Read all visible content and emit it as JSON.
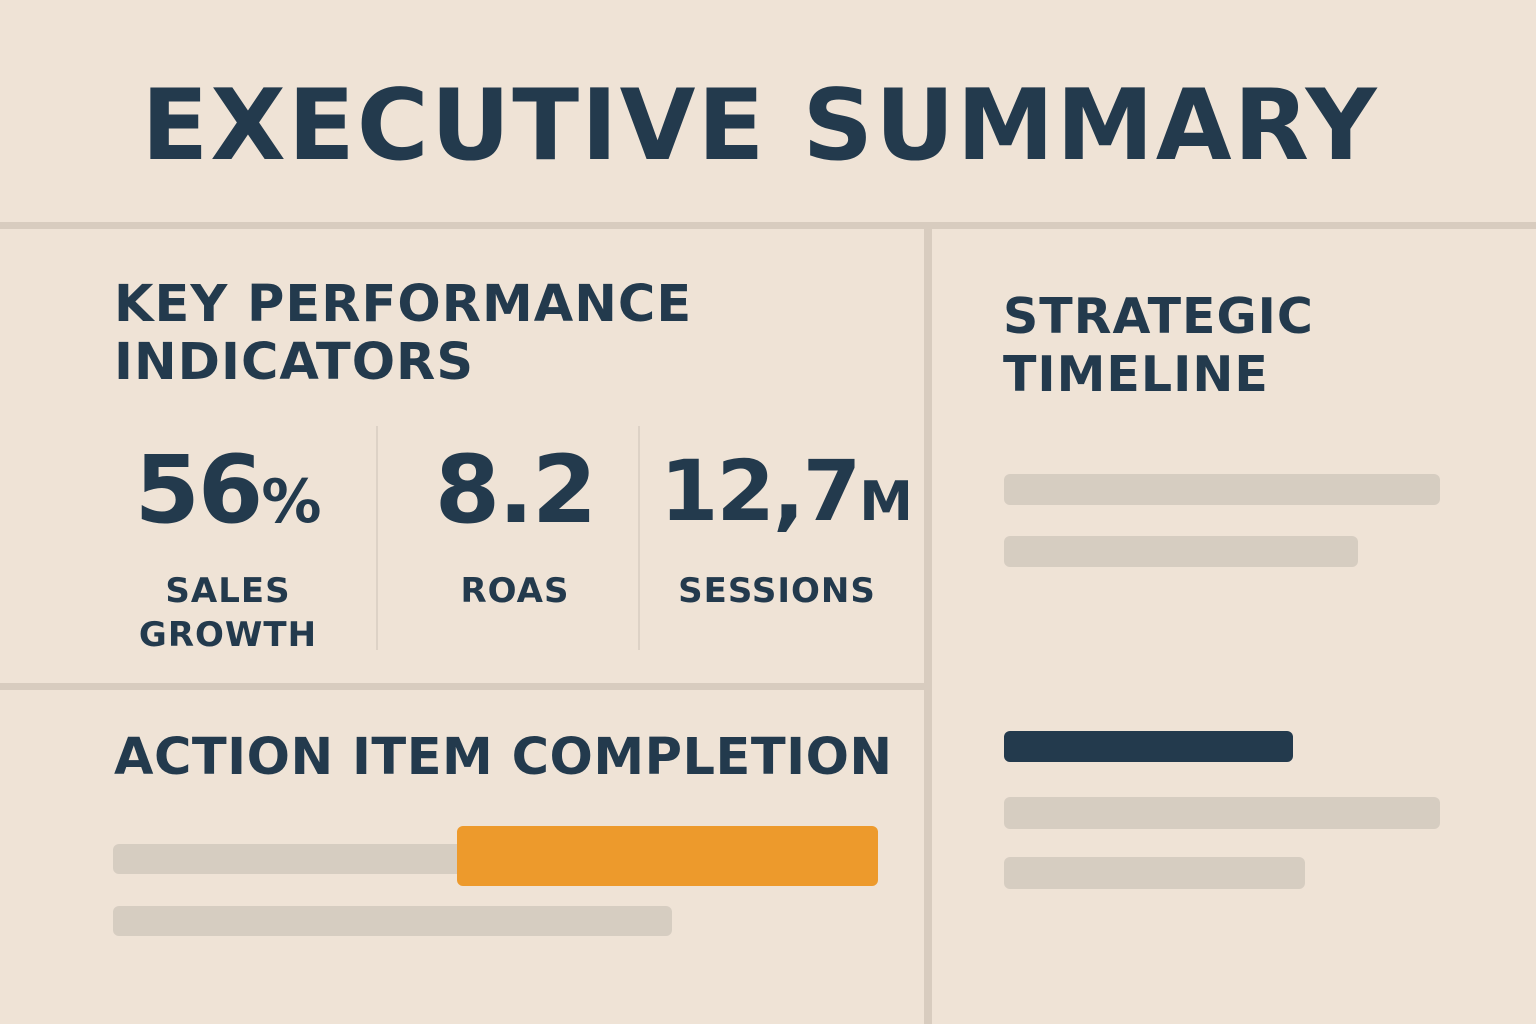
{
  "header": {
    "title": "EXECUTIVE SUMMARY"
  },
  "kpi_section": {
    "title": "KEY PERFORMANCE INDICATORS",
    "metrics": [
      {
        "value": "56",
        "unit": "%",
        "label": "SALES GROWTH"
      },
      {
        "value": "8.2",
        "unit": "",
        "label": "ROAS"
      },
      {
        "value": "12,7",
        "unit": "M",
        "label": "SESSIONS"
      }
    ]
  },
  "action_section": {
    "title": "ACTION ITEM COMPLETION",
    "progress_fraction": 0.55
  },
  "timeline_section": {
    "title": "STRATEGIC TIMELINE"
  },
  "colors": {
    "background": "#efe3d6",
    "text": "#233a4d",
    "accent": "#ed9a2c",
    "placeholder": "#d6cdc1"
  }
}
